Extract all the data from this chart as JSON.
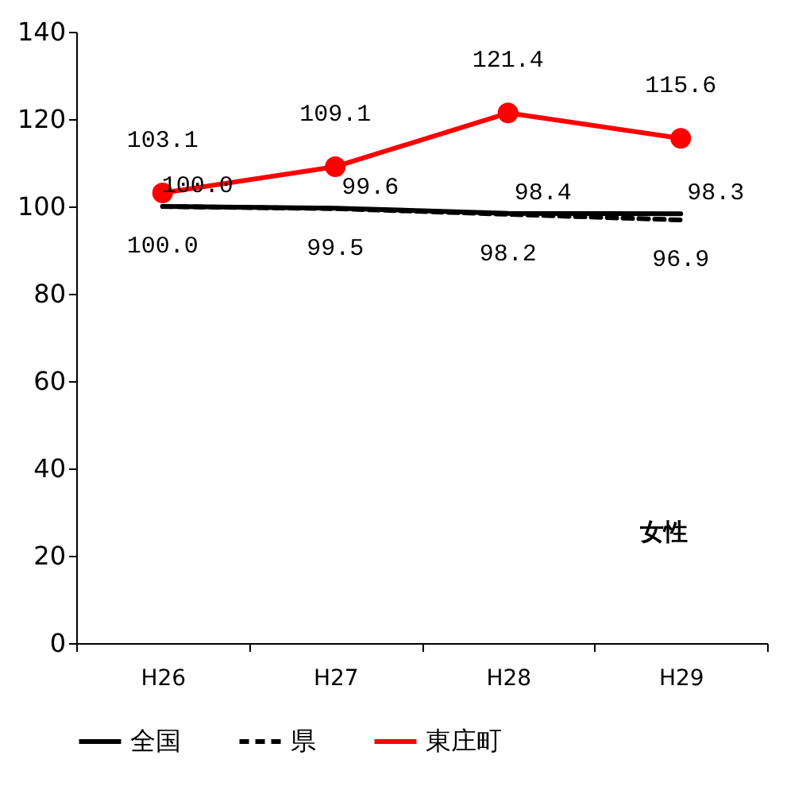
{
  "chart_data": {
    "type": "line",
    "categories": [
      "H26",
      "H27",
      "H28",
      "H29"
    ],
    "ylim": [
      0,
      140
    ],
    "yticks": [
      0,
      20,
      40,
      60,
      80,
      100,
      120,
      140
    ],
    "grid": false,
    "legend": "bottom",
    "data_labels": true,
    "annotations": [
      "女性"
    ],
    "series": [
      {
        "name": "全国",
        "color": "#000000",
        "line_style": "solid",
        "marker": "none",
        "values": [
          100.0,
          99.6,
          98.4,
          98.3
        ],
        "value_labels": [
          "100.0",
          "99.6",
          "98.4",
          "98.3"
        ]
      },
      {
        "name": "県",
        "color": "#000000",
        "line_style": "dashed",
        "marker": "none",
        "values": [
          100.0,
          99.5,
          98.2,
          96.9
        ],
        "value_labels": [
          "100.0",
          "99.5",
          "98.2",
          "96.9"
        ]
      },
      {
        "name": "東庄町",
        "color": "#ff0000",
        "line_style": "solid",
        "marker": "circle",
        "values": [
          103.1,
          109.1,
          121.4,
          115.6
        ],
        "value_labels": [
          "103.1",
          "109.1",
          "121.4",
          "115.6"
        ]
      }
    ]
  }
}
